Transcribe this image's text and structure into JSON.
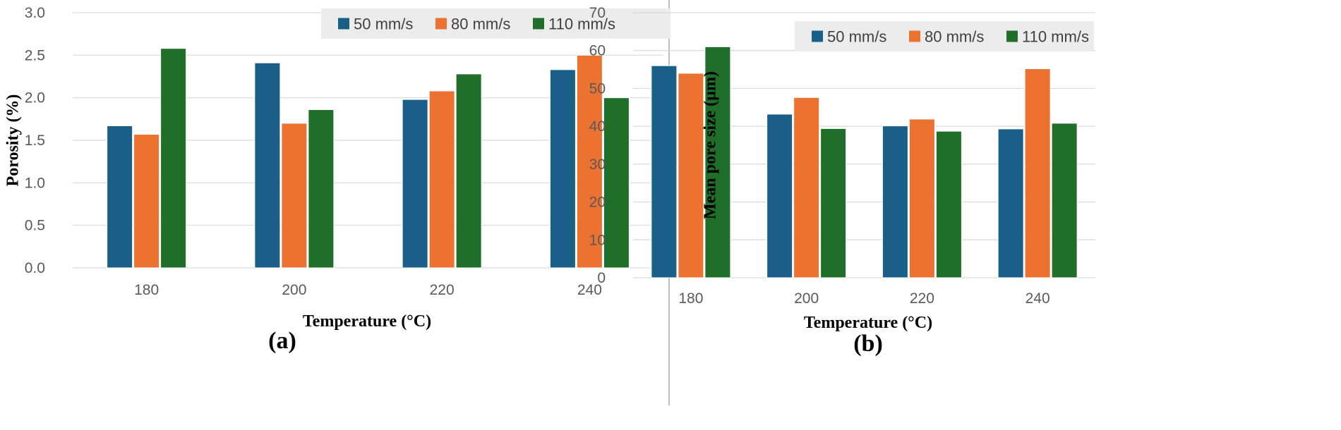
{
  "colors": {
    "series_50": "#1a5f87",
    "series_80": "#ec7232",
    "series_110": "#1f6f2b",
    "grid": "#d9d9d9",
    "legend_bg": "#ececec",
    "divider": "#bfbfbf"
  },
  "chart_data": [
    {
      "type": "bar",
      "panel_label": "(a)",
      "categories": [
        "180",
        "200",
        "220",
        "240"
      ],
      "series": [
        {
          "name": "50 mm/s",
          "values": [
            1.67,
            2.41,
            1.98,
            2.33
          ]
        },
        {
          "name": "80 mm/s",
          "values": [
            1.57,
            1.7,
            2.08,
            2.5
          ]
        },
        {
          "name": "110 mm/s",
          "values": [
            2.58,
            1.86,
            2.28,
            2.0
          ]
        }
      ],
      "title": "",
      "xlabel": "Temperature (°C)",
      "ylabel": "Porosity (%)",
      "ylim": [
        0,
        3.0
      ],
      "yticks": [
        "0.0",
        "0.5",
        "1.0",
        "1.5",
        "2.0",
        "2.5",
        "3.0"
      ],
      "grid": true,
      "legend_position": "top-right"
    },
    {
      "type": "bar",
      "panel_label": "(b)",
      "categories": [
        "180",
        "200",
        "220",
        "240"
      ],
      "series": [
        {
          "name": "50 mm/s",
          "values": [
            56,
            43.2,
            40.1,
            39.3
          ]
        },
        {
          "name": "80 mm/s",
          "values": [
            54,
            47.6,
            41.9,
            55.2
          ]
        },
        {
          "name": "110 mm/s",
          "values": [
            61,
            39.4,
            38.7,
            40.8
          ]
        }
      ],
      "title": "",
      "xlabel": "Temperature (°C)",
      "ylabel": "Mean pore size (µm)",
      "ylim": [
        0,
        70
      ],
      "yticks": [
        "0",
        "10",
        "20",
        "30",
        "40",
        "50",
        "60",
        "70"
      ],
      "grid": true,
      "legend_position": "top-right"
    }
  ]
}
